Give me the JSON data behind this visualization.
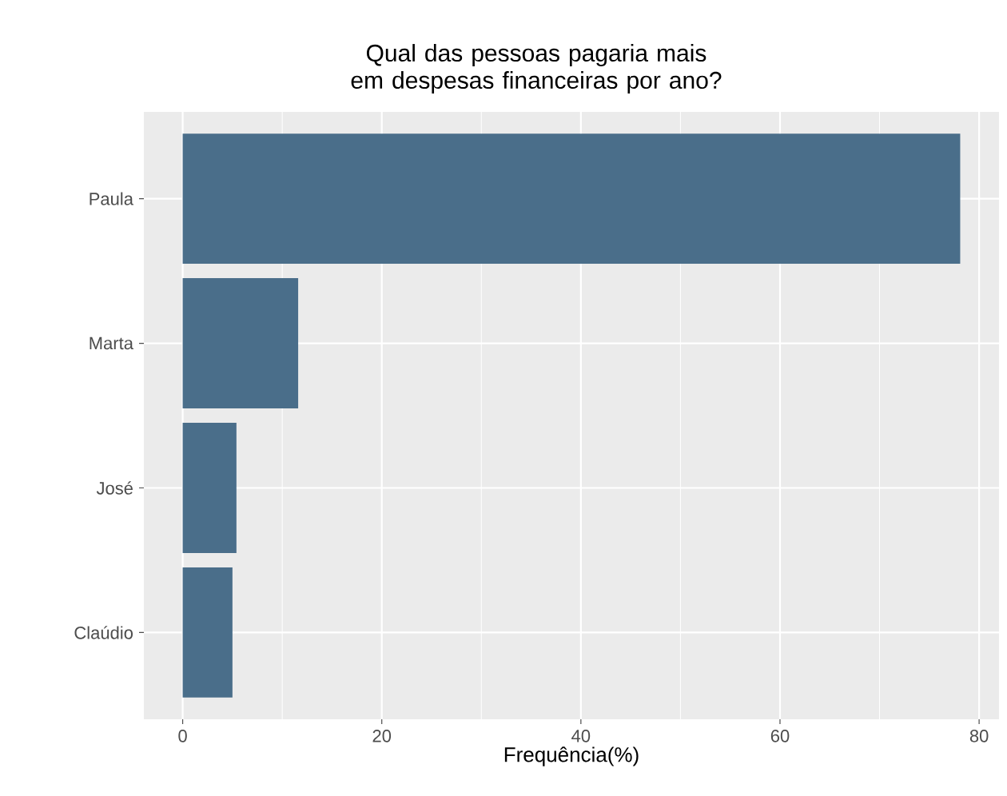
{
  "chart_data": {
    "type": "bar",
    "orientation": "horizontal",
    "title": "Qual das pessoas pagaria mais em despesas financeiras por ano?",
    "xlabel": "Frequência(%)",
    "categories": [
      "Paula",
      "Marta",
      "José",
      "Claúdio"
    ],
    "values": [
      78.1,
      11.6,
      5.4,
      5.0
    ],
    "color": "#4a6e8a",
    "xlim": [
      -3.9,
      82
    ],
    "xticks": [
      0,
      20,
      40,
      60,
      80
    ],
    "grid": true
  }
}
